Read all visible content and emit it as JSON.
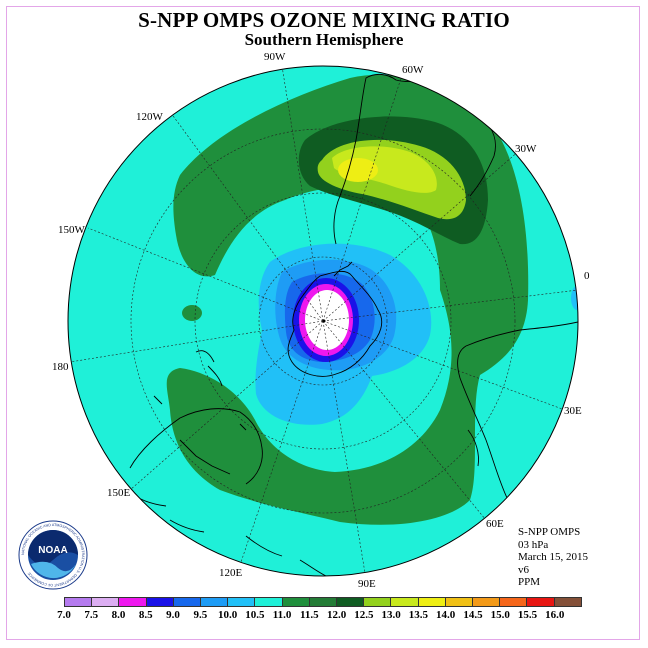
{
  "header": {
    "title": "S-NPP OMPS OZONE MIXING RATIO",
    "subtitle": "Southern Hemisphere"
  },
  "map": {
    "longitude_labels": [
      "90W",
      "60W",
      "120W",
      "30W",
      "150W",
      "0",
      "180",
      "30E",
      "150E",
      "60E",
      "120E",
      "90E"
    ]
  },
  "info": {
    "satellite": "S-NPP OMPS",
    "level": "03 hPa",
    "date": "March 15, 2015",
    "version": "v6",
    "units": "PPM"
  },
  "logo": {
    "text": "NOAA",
    "ring_text": "NATIONAL OCEANIC AND ATMOSPHERIC ADMINISTRATION U.S. DEPARTMENT OF COMMERCE"
  },
  "colorbar": {
    "labels": [
      "7.0",
      "7.5",
      "8.0",
      "8.5",
      "9.0",
      "9.5",
      "10.0",
      "10.5",
      "11.0",
      "11.5",
      "12.0",
      "12.5",
      "13.0",
      "13.5",
      "14.0",
      "14.5",
      "15.0",
      "15.5",
      "16.0"
    ],
    "colors": [
      "#b57bef",
      "#dcaef2",
      "#ee18ee",
      "#1a12e8",
      "#1768ec",
      "#1e9cf5",
      "#21c0f7",
      "#1ff0d8",
      "#1f8f3c",
      "#237c36",
      "#0f5c22",
      "#93d11d",
      "#c8e91d",
      "#eeee14",
      "#f0c015",
      "#f39a18",
      "#f5661a",
      "#e81612",
      "#845038"
    ]
  }
}
